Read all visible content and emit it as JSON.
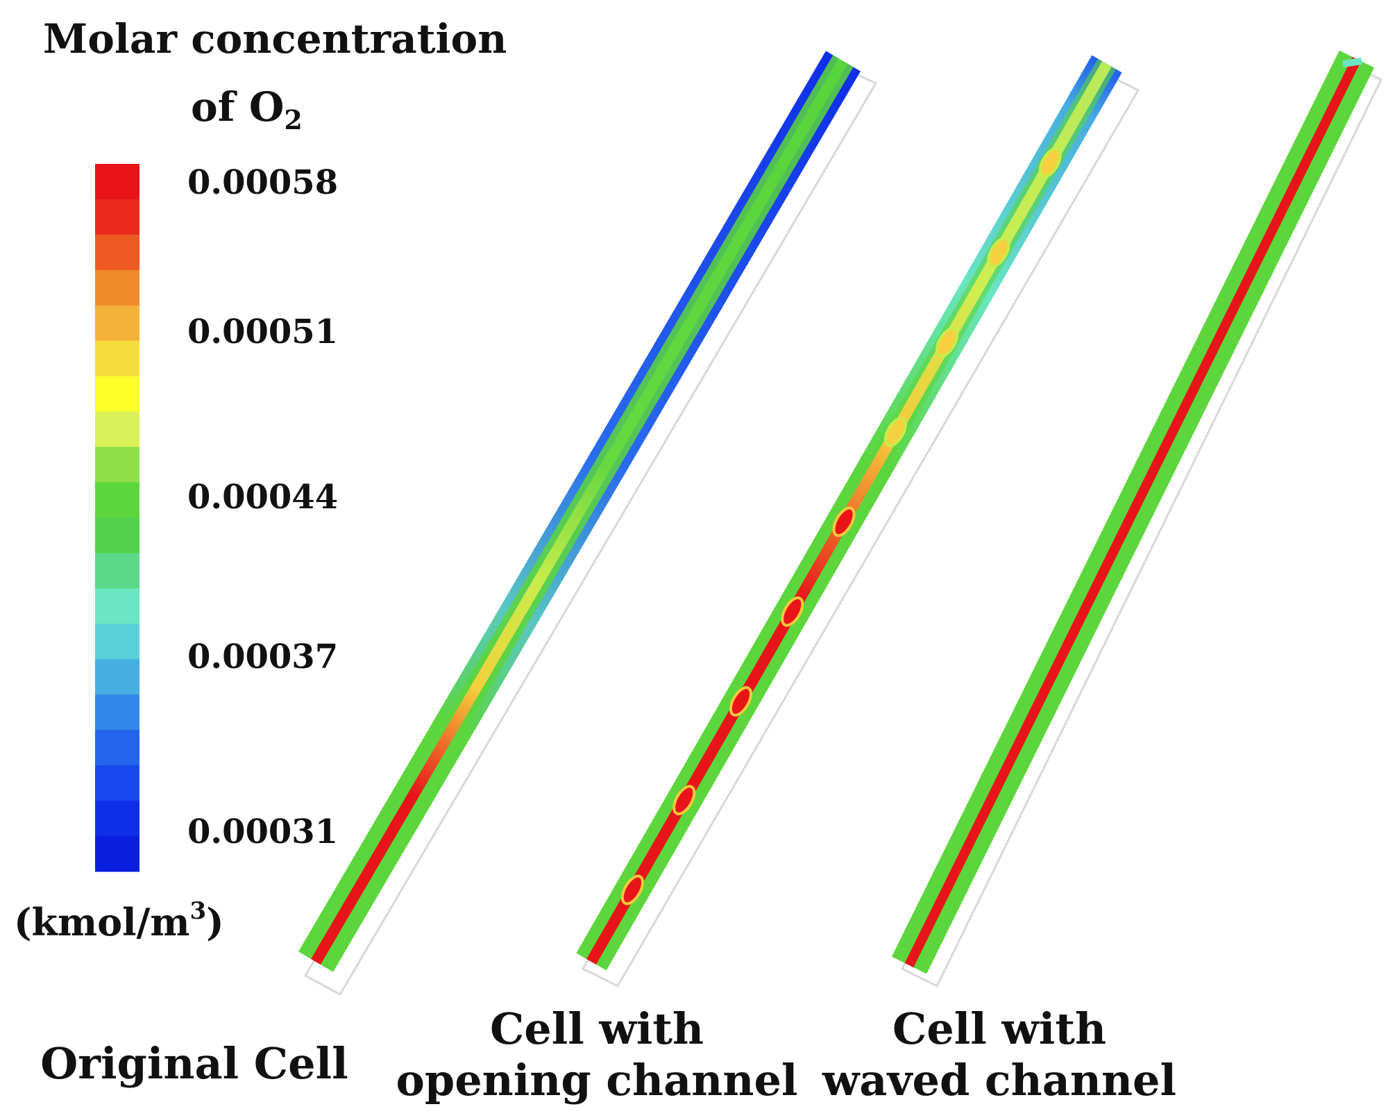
{
  "legend": {
    "title_line1": "Molar concentration",
    "title_line2_prefix": "of O",
    "title_line2_sub": "2",
    "ticks": [
      "0.00058",
      "0.00051",
      "0.00044",
      "0.00037",
      "0.00031"
    ],
    "unit_prefix": "(kmol/m",
    "unit_sup": "3",
    "unit_suffix": ")",
    "colors": [
      "#e8141a",
      "#ea2a1c",
      "#ee5a22",
      "#f18a2a",
      "#f4b23a",
      "#f8dc3e",
      "#fcff2a",
      "#d9f25a",
      "#8fe04a",
      "#5cd63c",
      "#52d24c",
      "#5cd88a",
      "#6ae6c2",
      "#5ad0d8",
      "#46aee0",
      "#3288e8",
      "#2464ec",
      "#1848ee",
      "#0f2ee8",
      "#0a1ee0"
    ]
  },
  "captions": {
    "original": "Original Cell",
    "opening_line1": "Cell with",
    "opening_line2": "opening channel",
    "waved_line1": "Cell with",
    "waved_line2": "waved channel"
  }
}
